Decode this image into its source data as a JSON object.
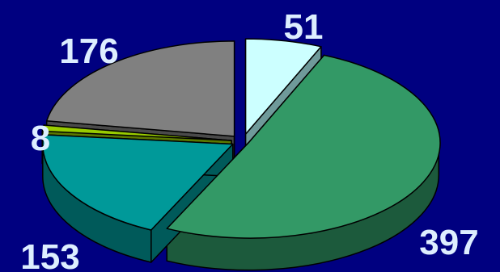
{
  "chart_data": {
    "type": "pie",
    "style": "3d-exploded",
    "values": [
      51,
      397,
      153,
      8,
      176
    ],
    "labels": [
      "51",
      "397",
      "153",
      "8",
      "176"
    ],
    "colors": [
      "#ccffff",
      "#339966",
      "#009999",
      "#99cc00",
      "#808080"
    ],
    "side_colors": [
      "#6f9a9a",
      "#1c5a3c",
      "#005a5a",
      "#5a7800",
      "#4a4a4a"
    ],
    "background": "#000080"
  }
}
